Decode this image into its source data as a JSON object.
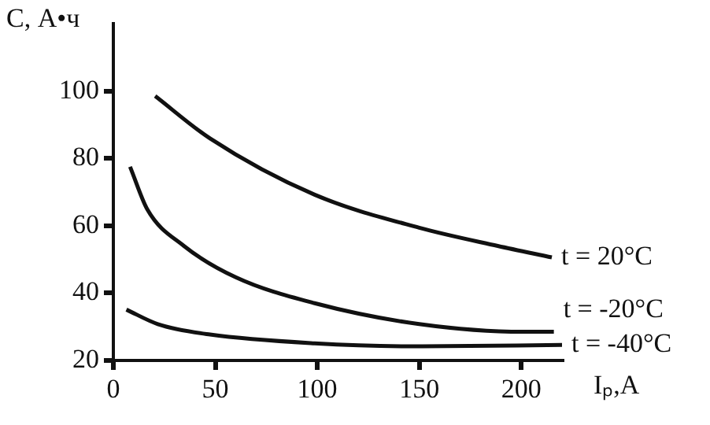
{
  "chart_data": {
    "type": "line",
    "ylabel": "C, А•ч",
    "xlabel": "Iₚ,A",
    "xlim": [
      0,
      220
    ],
    "xticks": [
      0,
      50,
      100,
      150,
      200
    ],
    "ylim": [
      20,
      120
    ],
    "yticks": [
      20,
      40,
      60,
      80,
      100
    ],
    "grid": false,
    "legend": false,
    "marker": "none",
    "line_style": "solid",
    "series": [
      {
        "color": "#111111",
        "x": [
          20.5,
          47.4,
          98.7,
          150,
          188.5,
          215
        ],
        "values": [
          98.5,
          85.9,
          69.2,
          59.4,
          54,
          50.6
        ]
      },
      {
        "color": "#111111",
        "x": [
          8.2,
          16.7,
          34.6,
          60,
          98.7,
          150,
          201,
          216
        ],
        "values": [
          77.5,
          64.8,
          54,
          44.7,
          37,
          30.8,
          28.5,
          28.5
        ]
      },
      {
        "color": "#111111",
        "x": [
          6.4,
          21.8,
          47.4,
          98.7,
          150,
          220
        ],
        "values": [
          35.1,
          30.8,
          27.7,
          25.1,
          24.2,
          24.6
        ]
      }
    ],
    "annotations": [
      "t = 20°C",
      "t = -20°C",
      "t = -40°C"
    ]
  }
}
